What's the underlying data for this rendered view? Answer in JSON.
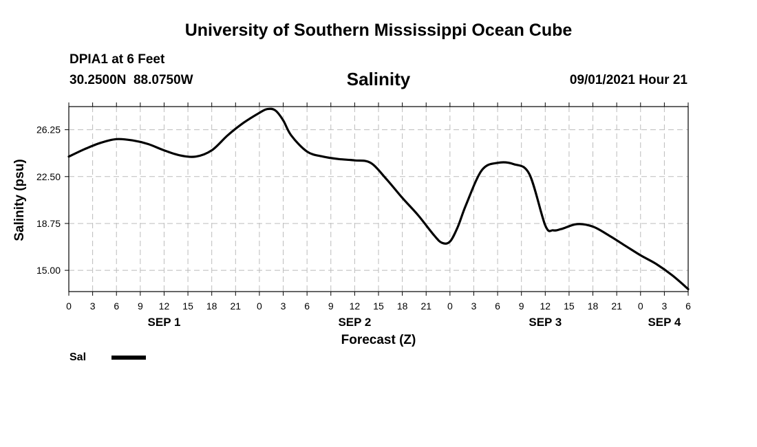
{
  "header": {
    "org_title": "University of Southern Mississippi Ocean Cube",
    "station": "DPIA1 at 6 Feet",
    "coords": "30.2500N  88.0750W",
    "variable_title": "Salinity",
    "timestamp": "09/01/2021 Hour 21"
  },
  "footer": {
    "org_title": "University of Southern Mississippi Ocean Cube"
  },
  "chart_data": {
    "type": "line",
    "xlabel": "Forecast (Z)",
    "ylabel": "Salinity (psu)",
    "xlim": [
      0,
      78
    ],
    "ylim": [
      13.3,
      28.1
    ],
    "yticks": [
      15.0,
      18.75,
      22.5,
      26.25
    ],
    "ytick_labels": [
      "15.00",
      "18.75",
      "22.50",
      "26.25"
    ],
    "xtick_labels": [
      "0",
      "3",
      "6",
      "9",
      "12",
      "15",
      "18",
      "21",
      "0",
      "3",
      "6",
      "9",
      "12",
      "15",
      "18",
      "21",
      "0",
      "3",
      "6",
      "9",
      "12",
      "15",
      "18",
      "21",
      "0",
      "3",
      "6"
    ],
    "day_labels": [
      {
        "label": "SEP 1",
        "x": 12
      },
      {
        "label": "SEP 2",
        "x": 36
      },
      {
        "label": "SEP 3",
        "x": 60
      },
      {
        "label": "SEP 4",
        "x": 75
      }
    ],
    "grid": true,
    "legend_position": "bottom-left",
    "series": [
      {
        "name": "Sal",
        "color": "#000000",
        "x": [
          0,
          2,
          4,
          6,
          8,
          10,
          12,
          14,
          16,
          18,
          20,
          22,
          24,
          25,
          26,
          27,
          28,
          30,
          32,
          34,
          36,
          38,
          40,
          42,
          44,
          46,
          47,
          48,
          49,
          50,
          52,
          54,
          56,
          58,
          60,
          61,
          62,
          64,
          66,
          68,
          70,
          72,
          74,
          76,
          78
        ],
        "values": [
          24.1,
          24.7,
          25.2,
          25.5,
          25.4,
          25.1,
          24.6,
          24.2,
          24.1,
          24.6,
          25.8,
          26.8,
          27.6,
          27.9,
          27.8,
          27.0,
          25.8,
          24.5,
          24.1,
          23.9,
          23.8,
          23.6,
          22.3,
          20.8,
          19.4,
          17.8,
          17.2,
          17.3,
          18.5,
          20.2,
          23.0,
          23.6,
          23.5,
          22.7,
          18.6,
          18.2,
          18.3,
          18.7,
          18.5,
          17.8,
          17.0,
          16.2,
          15.5,
          14.6,
          13.5
        ]
      }
    ]
  }
}
